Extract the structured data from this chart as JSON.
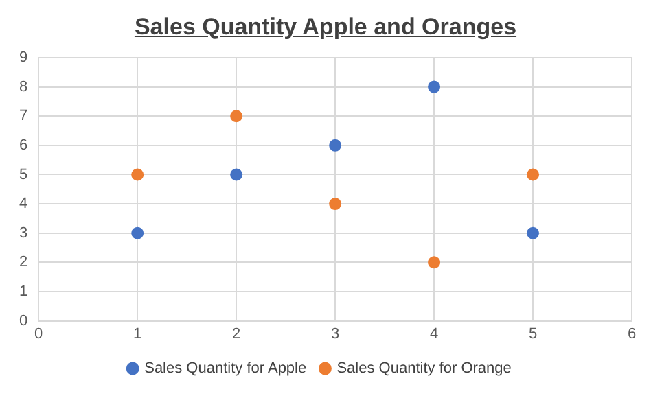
{
  "chart_data": {
    "type": "scatter",
    "title": "Sales Quantity Apple and Oranges",
    "x": [
      1,
      2,
      3,
      4,
      5
    ],
    "series": [
      {
        "name": "Sales Quantity for Apple",
        "color": "#4472c4",
        "values": [
          3,
          5,
          6,
          8,
          3
        ]
      },
      {
        "name": "Sales Quantity for Orange",
        "color": "#ed7d31",
        "values": [
          5,
          7,
          4,
          2,
          5
        ]
      }
    ],
    "xlim": [
      0,
      6
    ],
    "xticks": [
      0,
      1,
      2,
      3,
      4,
      5,
      6
    ],
    "ylim": [
      0,
      9
    ],
    "yticks": [
      0,
      1,
      2,
      3,
      4,
      5,
      6,
      7,
      8,
      9
    ],
    "grid": true,
    "legend": "bottom",
    "marker": "circle"
  }
}
